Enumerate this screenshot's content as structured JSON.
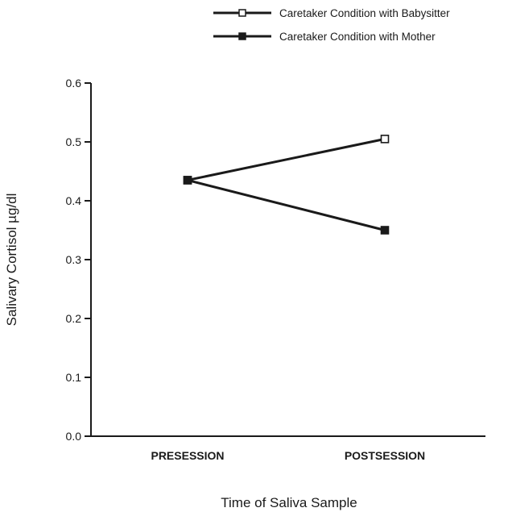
{
  "chart_data": {
    "type": "line",
    "title": "",
    "xlabel": "Time of Saliva Sample",
    "ylabel": "Salivary Cortisol µg/dl",
    "categories": [
      "PRESESSION",
      "POSTSESSION"
    ],
    "ylim": [
      0.0,
      0.6
    ],
    "yticks": [
      "0.0",
      "0.1",
      "0.2",
      "0.3",
      "0.4",
      "0.5",
      "0.6"
    ],
    "grid": false,
    "legend_position": "top-right",
    "series": [
      {
        "name": "Caretaker Condition with Babysitter",
        "values": [
          0.435,
          0.505
        ],
        "marker": "open-square",
        "color": "#1a1a1a"
      },
      {
        "name": "Caretaker Condition with Mother",
        "values": [
          0.435,
          0.35
        ],
        "marker": "filled-square",
        "color": "#1a1a1a"
      }
    ]
  }
}
